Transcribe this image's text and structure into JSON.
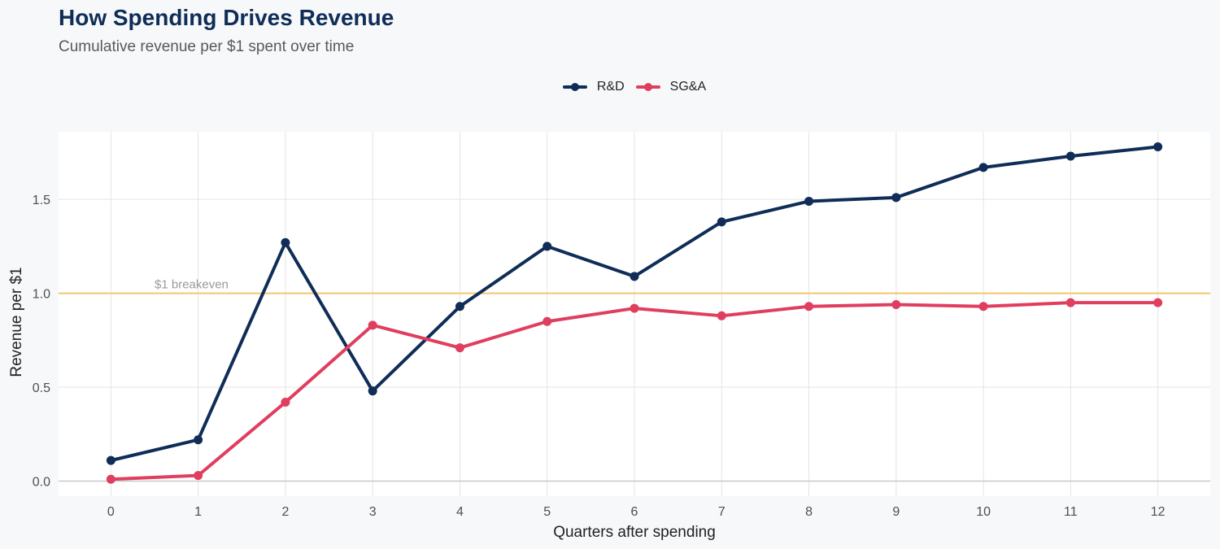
{
  "title": "How Spending Drives Revenue",
  "subtitle": "Cumulative revenue per $1 spent over time",
  "chart_data": {
    "type": "line",
    "x": [
      0,
      1,
      2,
      3,
      4,
      5,
      6,
      7,
      8,
      9,
      10,
      11,
      12
    ],
    "series": [
      {
        "name": "R&D",
        "color": "#0f2d57",
        "values": [
          0.11,
          0.22,
          1.27,
          0.48,
          0.93,
          1.25,
          1.09,
          1.38,
          1.49,
          1.51,
          1.67,
          1.73,
          1.78
        ]
      },
      {
        "name": "SG&A",
        "color": "#e03e5e",
        "values": [
          0.01,
          0.03,
          0.42,
          0.83,
          0.71,
          0.85,
          0.92,
          0.88,
          0.93,
          0.94,
          0.93,
          0.95,
          0.95
        ]
      }
    ],
    "xlabel": "Quarters after spending",
    "ylabel": "Revenue per $1",
    "xlim": [
      -0.6,
      12.6
    ],
    "ylim": [
      -0.08,
      1.86
    ],
    "x_ticks": [
      "0",
      "1",
      "2",
      "3",
      "4",
      "5",
      "6",
      "7",
      "8",
      "9",
      "10",
      "11",
      "12"
    ],
    "y_ticks": [
      "0.0",
      "0.5",
      "1.0",
      "1.5"
    ],
    "reference_line": {
      "y": 1.0,
      "label": "$1 breakeven",
      "color": "#f2c76b"
    },
    "grid": true,
    "legend_position": "top"
  }
}
